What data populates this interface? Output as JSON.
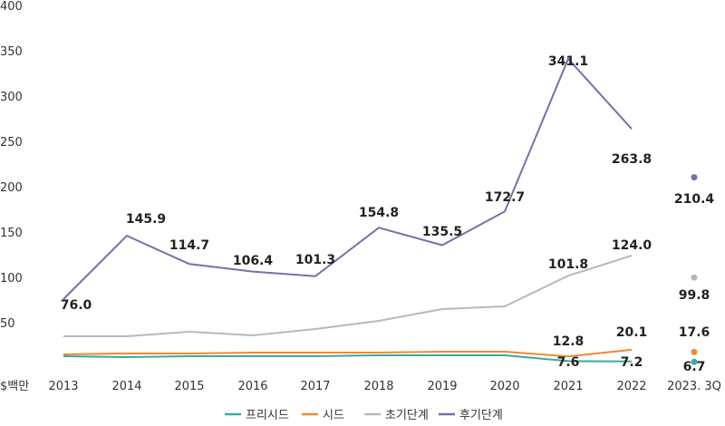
{
  "chart_data": {
    "type": "line",
    "ylabel": "$백만",
    "ylim": [
      0,
      400
    ],
    "y_ticks": [
      "400",
      "350",
      "300",
      "250",
      "200",
      "150",
      "100",
      "50"
    ],
    "categories": [
      "2013",
      "2014",
      "2015",
      "2016",
      "2017",
      "2018",
      "2019",
      "2020",
      "2021",
      "2022",
      "2023. 3Q"
    ],
    "grid": false,
    "legend_position": "bottom",
    "series": [
      {
        "name": "프리시드",
        "color": "#3aa9a0",
        "values": [
          13,
          12,
          13,
          13,
          13,
          14,
          14,
          14,
          7.6,
          7.2,
          null
        ],
        "point_2023_3q": 6.7,
        "labels": {
          "8": "7.6",
          "9": "7.2"
        },
        "label_2023_3q": "6.7"
      },
      {
        "name": "시드",
        "color": "#ee8a33",
        "values": [
          15,
          16,
          16,
          17,
          17,
          17,
          18,
          18,
          12.8,
          20.1,
          null
        ],
        "point_2023_3q": 17.6,
        "labels": {
          "8": "12.8",
          "9": "20.1"
        },
        "label_2023_3q": "17.6"
      },
      {
        "name": "초기단계",
        "color": "#b9b9b9",
        "values": [
          35,
          35,
          40,
          36,
          43,
          52,
          65,
          68,
          101.8,
          124.0,
          null
        ],
        "point_2023_3q": 99.8,
        "labels": {
          "8": "101.8",
          "9": "124.0"
        },
        "label_2023_3q": "99.8"
      },
      {
        "name": "후기단계",
        "color": "#7b6ea9",
        "values": [
          76.0,
          145.9,
          114.7,
          106.4,
          101.3,
          154.8,
          135.5,
          172.7,
          341.1,
          263.8,
          null
        ],
        "point_2023_3q": 210.4,
        "labels": {
          "0": "76.0",
          "1": "145.9",
          "2": "114.7",
          "3": "106.4",
          "4": "101.3",
          "5": "154.8",
          "6": "135.5",
          "7": "172.7",
          "8": "341.1",
          "9": "263.8"
        },
        "label_2023_3q": "210.4"
      }
    ]
  }
}
